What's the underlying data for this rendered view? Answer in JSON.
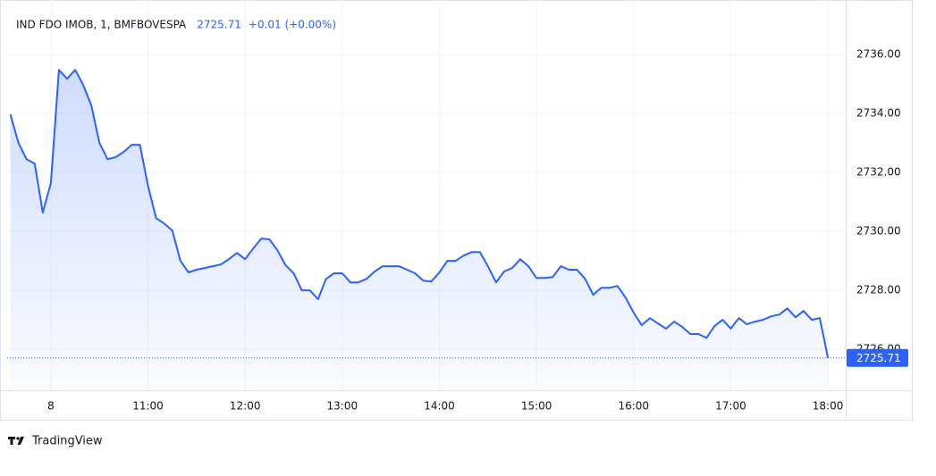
{
  "chart_data": {
    "type": "line",
    "title": "IND FDO IMOB, 1, BMFBOVESPA",
    "last_price": 2725.71,
    "change_label": "+0.01 (+0.00%)",
    "brand": "TradingView",
    "color": "#2962ff",
    "grid": true,
    "xlim": [
      573,
      1091
    ],
    "xticks": [
      {
        "value": 600,
        "label": "8"
      },
      {
        "value": 660,
        "label": "11:00"
      },
      {
        "value": 720,
        "label": "12:00"
      },
      {
        "value": 780,
        "label": "13:00"
      },
      {
        "value": 840,
        "label": "14:00"
      },
      {
        "value": 900,
        "label": "15:00"
      },
      {
        "value": 960,
        "label": "16:00"
      },
      {
        "value": 1020,
        "label": "17:00"
      },
      {
        "value": 1080,
        "label": "18:00"
      }
    ],
    "ylim": [
      2724.61,
      2737.55
    ],
    "yticks": [
      {
        "value": 2726,
        "label": "2726.00"
      },
      {
        "value": 2728,
        "label": "2728.00"
      },
      {
        "value": 2730,
        "label": "2730.00"
      },
      {
        "value": 2732,
        "label": "2732.00"
      },
      {
        "value": 2734,
        "label": "2734.00"
      },
      {
        "value": 2736,
        "label": "2736.00"
      }
    ],
    "x": [
      575,
      580,
      585,
      590,
      595,
      600,
      605,
      610,
      615,
      620,
      625,
      630,
      635,
      640,
      645,
      650,
      655,
      660,
      665,
      670,
      675,
      680,
      685,
      690,
      695,
      700,
      705,
      710,
      715,
      720,
      725,
      730,
      735,
      740,
      745,
      750,
      755,
      760,
      765,
      770,
      775,
      780,
      785,
      790,
      795,
      800,
      805,
      810,
      815,
      820,
      825,
      830,
      835,
      840,
      845,
      850,
      855,
      860,
      865,
      870,
      875,
      880,
      885,
      890,
      895,
      900,
      905,
      910,
      915,
      920,
      925,
      930,
      935,
      940,
      945,
      950,
      955,
      960,
      965,
      970,
      975,
      980,
      985,
      990,
      995,
      1000,
      1005,
      1010,
      1015,
      1020,
      1025,
      1030,
      1035,
      1040,
      1045,
      1050,
      1055,
      1060,
      1065,
      1070,
      1075,
      1080
    ],
    "values": [
      2733.97,
      2733.0,
      2732.45,
      2732.3,
      2730.64,
      2731.64,
      2735.48,
      2735.18,
      2735.48,
      2734.97,
      2734.27,
      2733.0,
      2732.45,
      2732.52,
      2732.7,
      2732.94,
      2732.94,
      2731.55,
      2730.45,
      2730.27,
      2730.03,
      2729.0,
      2728.61,
      2728.7,
      2728.76,
      2728.82,
      2728.88,
      2729.06,
      2729.27,
      2729.06,
      2729.42,
      2729.76,
      2729.73,
      2729.36,
      2728.85,
      2728.58,
      2728.0,
      2728.0,
      2727.7,
      2728.39,
      2728.58,
      2728.58,
      2728.27,
      2728.27,
      2728.39,
      2728.64,
      2728.82,
      2728.82,
      2728.82,
      2728.7,
      2728.58,
      2728.33,
      2728.3,
      2728.61,
      2729.0,
      2729.0,
      2729.18,
      2729.3,
      2729.3,
      2728.82,
      2728.27,
      2728.64,
      2728.76,
      2729.06,
      2728.82,
      2728.42,
      2728.42,
      2728.45,
      2728.82,
      2728.7,
      2728.7,
      2728.39,
      2727.85,
      2728.09,
      2728.09,
      2728.15,
      2727.76,
      2727.24,
      2726.82,
      2727.06,
      2726.88,
      2726.7,
      2726.94,
      2726.76,
      2726.52,
      2726.52,
      2726.39,
      2726.79,
      2727.0,
      2726.7,
      2727.06,
      2726.85,
      2726.94,
      2727.0,
      2727.12,
      2727.18,
      2727.39,
      2727.09,
      2727.3,
      2727.0,
      2727.06,
      2725.71
    ]
  }
}
